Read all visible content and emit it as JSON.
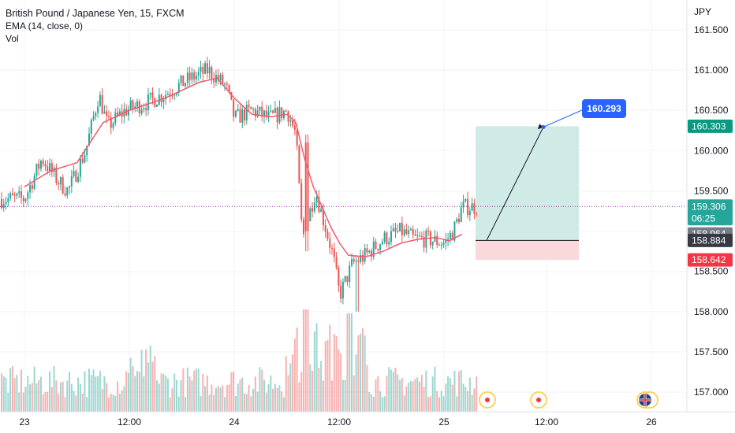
{
  "header": {
    "title": "British Pound / Japanese Yen, 15, FXCM",
    "indicator": "EMA (14, close, 0)",
    "volume_label": "Vol"
  },
  "price_axis": {
    "currency": "JPY",
    "ticks": [
      "161.500",
      "161.000",
      "160.500",
      "160.000",
      "159.500",
      "158.500",
      "158.000",
      "157.500",
      "157.000"
    ]
  },
  "time_axis": {
    "ticks": [
      "23",
      "12:00",
      "24",
      "12:00",
      "25",
      "12:00",
      "26"
    ]
  },
  "price_tags": {
    "target": "160.303",
    "current": "159.306",
    "countdown": "06:25",
    "ema": "158.964",
    "entry": "158.884",
    "stop": "158.642"
  },
  "callout": "160.293",
  "colors": {
    "up": "#26a69a",
    "down": "#ef5350",
    "ema": "#f05a6e",
    "profit_zone": "#d0ebe6",
    "loss_zone": "#fbd8dc",
    "callout": "#2962ff",
    "current_tag": "#26a69a",
    "ema_tag": "#787b86",
    "entry_tag": "#363a45",
    "stop_tag": "#f23645",
    "target_tag": "#089981"
  },
  "events": [
    {
      "icon": "event-flag-icon"
    },
    {
      "icon": "event-flag-icon"
    },
    {
      "icon": "uk-flag-icon"
    }
  ],
  "chart_data": {
    "type": "candlestick",
    "title": "British Pound / Japanese Yen, 15, FXCM",
    "interval": "15",
    "ylim": [
      156.8,
      161.8
    ],
    "series": [
      {
        "name": "EMA (14, close, 0)",
        "kind": "line"
      },
      {
        "name": "Vol",
        "kind": "volume"
      }
    ],
    "price_path": [
      {
        "x": "23 00:00",
        "y": 159.4
      },
      {
        "x": "23 02:00",
        "y": 159.9
      },
      {
        "x": "23 04:00",
        "y": 159.6
      },
      {
        "x": "23 05:00",
        "y": 159.5
      },
      {
        "x": "23 07:00",
        "y": 160.0
      },
      {
        "x": "23 08:30",
        "y": 160.7
      },
      {
        "x": "23 09:30",
        "y": 160.3
      },
      {
        "x": "23 11:30",
        "y": 160.5
      },
      {
        "x": "23 14:00",
        "y": 160.6
      },
      {
        "x": "23 16:00",
        "y": 160.7
      },
      {
        "x": "23 19:00",
        "y": 160.9
      },
      {
        "x": "23 21:00",
        "y": 161.0
      },
      {
        "x": "23 23:00",
        "y": 160.8
      },
      {
        "x": "24 00:00",
        "y": 160.4
      },
      {
        "x": "24 02:00",
        "y": 160.5
      },
      {
        "x": "24 04:00",
        "y": 160.4
      },
      {
        "x": "24 06:00",
        "y": 160.5
      },
      {
        "x": "24 07:00",
        "y": 160.2
      },
      {
        "x": "24 07:45",
        "y": 158.9
      },
      {
        "x": "24 08:30",
        "y": 159.2
      },
      {
        "x": "24 09:15",
        "y": 159.5
      },
      {
        "x": "24 10:30",
        "y": 159.0
      },
      {
        "x": "24 11:15",
        "y": 158.7
      },
      {
        "x": "24 12:00",
        "y": 158.2
      },
      {
        "x": "24 13:30",
        "y": 158.6
      },
      {
        "x": "24 15:00",
        "y": 158.7
      },
      {
        "x": "24 17:00",
        "y": 158.9
      },
      {
        "x": "24 19:00",
        "y": 159.0
      },
      {
        "x": "24 20:30",
        "y": 158.9
      },
      {
        "x": "24 22:00",
        "y": 158.9
      },
      {
        "x": "25 00:00",
        "y": 158.85
      },
      {
        "x": "25 01:00",
        "y": 159.0
      },
      {
        "x": "25 02:00",
        "y": 159.3
      }
    ],
    "ema_path": [
      {
        "x": "23 00:00",
        "y": 159.55
      },
      {
        "x": "23 03:00",
        "y": 159.75
      },
      {
        "x": "23 06:00",
        "y": 159.85
      },
      {
        "x": "23 09:00",
        "y": 160.35
      },
      {
        "x": "23 12:00",
        "y": 160.5
      },
      {
        "x": "23 16:00",
        "y": 160.65
      },
      {
        "x": "23 20:00",
        "y": 160.85
      },
      {
        "x": "23 22:00",
        "y": 160.9
      },
      {
        "x": "24 00:00",
        "y": 160.65
      },
      {
        "x": "24 02:00",
        "y": 160.45
      },
      {
        "x": "24 04:00",
        "y": 160.42
      },
      {
        "x": "24 06:00",
        "y": 160.45
      },
      {
        "x": "24 07:00",
        "y": 160.35
      },
      {
        "x": "24 08:00",
        "y": 159.9
      },
      {
        "x": "24 09:00",
        "y": 159.55
      },
      {
        "x": "24 10:00",
        "y": 159.3
      },
      {
        "x": "24 11:00",
        "y": 159.05
      },
      {
        "x": "24 12:00",
        "y": 158.85
      },
      {
        "x": "24 13:00",
        "y": 158.7
      },
      {
        "x": "24 15:00",
        "y": 158.68
      },
      {
        "x": "24 17:00",
        "y": 158.75
      },
      {
        "x": "24 19:00",
        "y": 158.85
      },
      {
        "x": "24 21:00",
        "y": 158.9
      },
      {
        "x": "24 23:00",
        "y": 158.92
      },
      {
        "x": "25 00:30",
        "y": 158.88
      },
      {
        "x": "25 02:00",
        "y": 158.96
      }
    ],
    "position": {
      "type": "long",
      "entry": 158.884,
      "target": 160.303,
      "stop": 158.642,
      "projected": 160.293
    }
  }
}
